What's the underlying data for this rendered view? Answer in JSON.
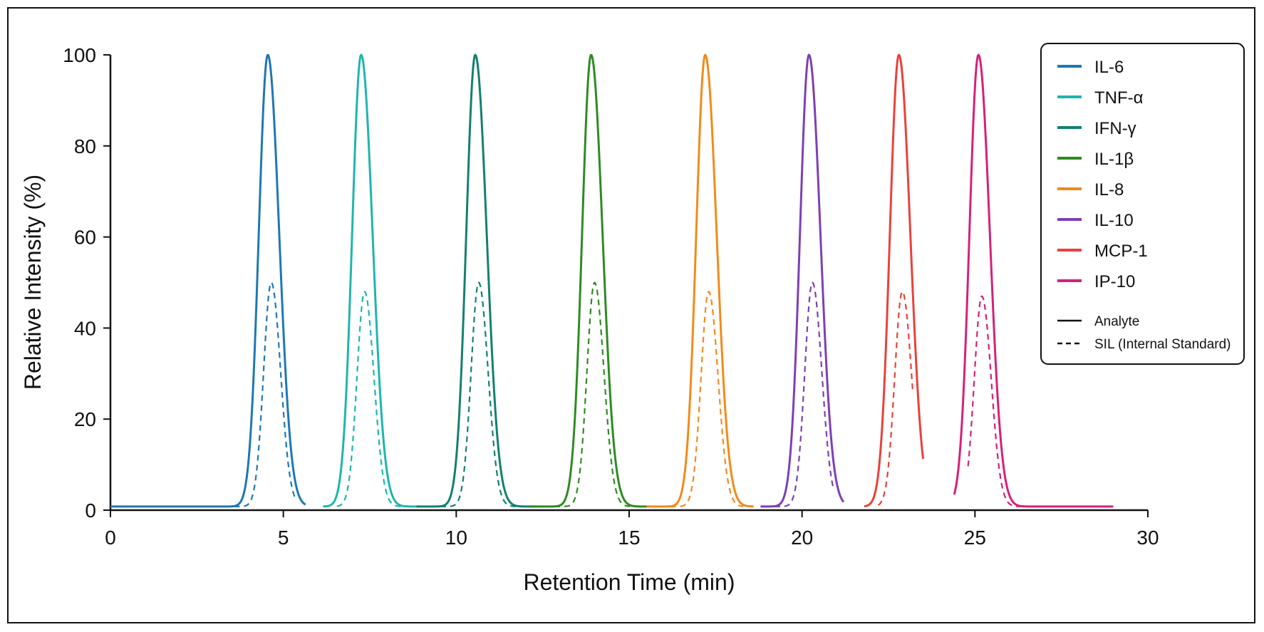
{
  "chart_data": {
    "type": "line",
    "title": "",
    "xlabel": "Retention Time (min)",
    "ylabel": "Relative Intensity (%)",
    "xlim": [
      0,
      30
    ],
    "ylim": [
      0,
      100
    ],
    "x_ticks": [
      0,
      5,
      10,
      15,
      20,
      25,
      30
    ],
    "y_ticks": [
      0,
      20,
      40,
      60,
      80,
      100
    ],
    "grid": false,
    "legend_position": "top-right",
    "baseline": 0.8,
    "series": [
      {
        "name": "IL-6",
        "color": "#1f77b4",
        "analyte": {
          "retention_time": 4.55,
          "peak": 100
        },
        "sil": {
          "retention_time": 4.65,
          "peak": 50
        }
      },
      {
        "name": "TNF-α",
        "color": "#1fb5ad",
        "analyte": {
          "retention_time": 7.25,
          "peak": 100
        },
        "sil": {
          "retention_time": 7.35,
          "peak": 48
        }
      },
      {
        "name": "IFN-γ",
        "color": "#138070",
        "analyte": {
          "retention_time": 10.55,
          "peak": 100
        },
        "sil": {
          "retention_time": 10.65,
          "peak": 50
        }
      },
      {
        "name": "IL-1β",
        "color": "#2e8b22",
        "analyte": {
          "retention_time": 13.9,
          "peak": 100
        },
        "sil": {
          "retention_time": 14.0,
          "peak": 50
        }
      },
      {
        "name": "IL-8",
        "color": "#f28a1c",
        "analyte": {
          "retention_time": 17.2,
          "peak": 100
        },
        "sil": {
          "retention_time": 17.3,
          "peak": 48
        }
      },
      {
        "name": "IL-10",
        "color": "#7e3fb5",
        "analyte": {
          "retention_time": 20.2,
          "peak": 100
        },
        "sil": {
          "retention_time": 20.3,
          "peak": 50
        }
      },
      {
        "name": "MCP-1",
        "color": "#e8413a",
        "analyte": {
          "retention_time": 22.8,
          "peak": 100
        },
        "sil": {
          "retention_time": 22.9,
          "peak": 48
        }
      },
      {
        "name": "IP-10",
        "color": "#d4207a",
        "analyte": {
          "retention_time": 25.1,
          "peak": 100
        },
        "sil": {
          "retention_time": 25.2,
          "peak": 47
        }
      }
    ],
    "line_styles": [
      {
        "label": "Analyte",
        "style": "solid"
      },
      {
        "label": "SIL (Internal Standard)",
        "style": "dashed"
      }
    ]
  }
}
